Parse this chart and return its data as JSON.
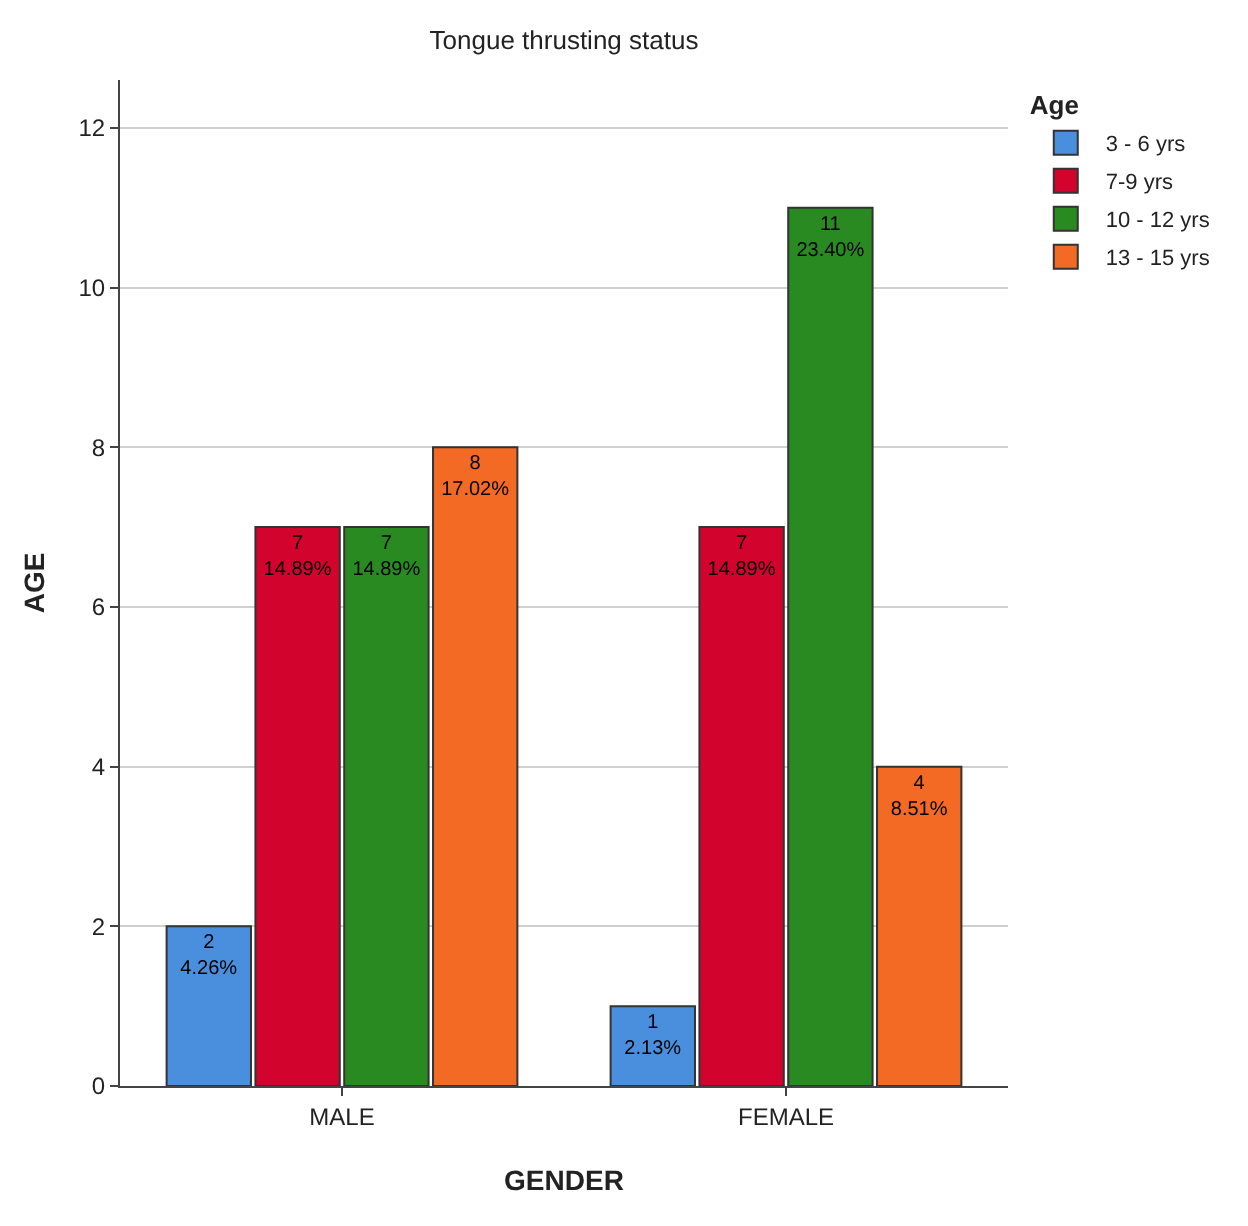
{
  "chart_data": {
    "type": "bar",
    "title": "Tongue thrusting status",
    "xlabel": "GENDER",
    "ylabel": "AGE",
    "legend_title": "Age",
    "categories": [
      "MALE",
      "FEMALE"
    ],
    "series": [
      {
        "name": "3 - 6 yrs",
        "color": "#4a8fdd",
        "values": [
          2,
          1
        ],
        "value_labels": [
          "2\n4.26%",
          "1\n2.13%"
        ]
      },
      {
        "name": "7-9 yrs",
        "color": "#d2042d",
        "values": [
          7,
          7
        ],
        "value_labels": [
          "7\n14.89%",
          "7\n14.89%"
        ]
      },
      {
        "name": "10 - 12 yrs",
        "color": "#2a8a22",
        "values": [
          7,
          11
        ],
        "value_labels": [
          "7\n14.89%",
          "11\n23.40%"
        ]
      },
      {
        "name": "13 - 15 yrs",
        "color": "#f36a24",
        "values": [
          8,
          4
        ],
        "value_labels": [
          "8\n17.02%",
          "4\n8.51%"
        ]
      }
    ],
    "ylim": [
      0,
      12.6
    ],
    "yticks": [
      0,
      2,
      4,
      6,
      8,
      10,
      12
    ],
    "grid": "y",
    "legend": "top right"
  }
}
